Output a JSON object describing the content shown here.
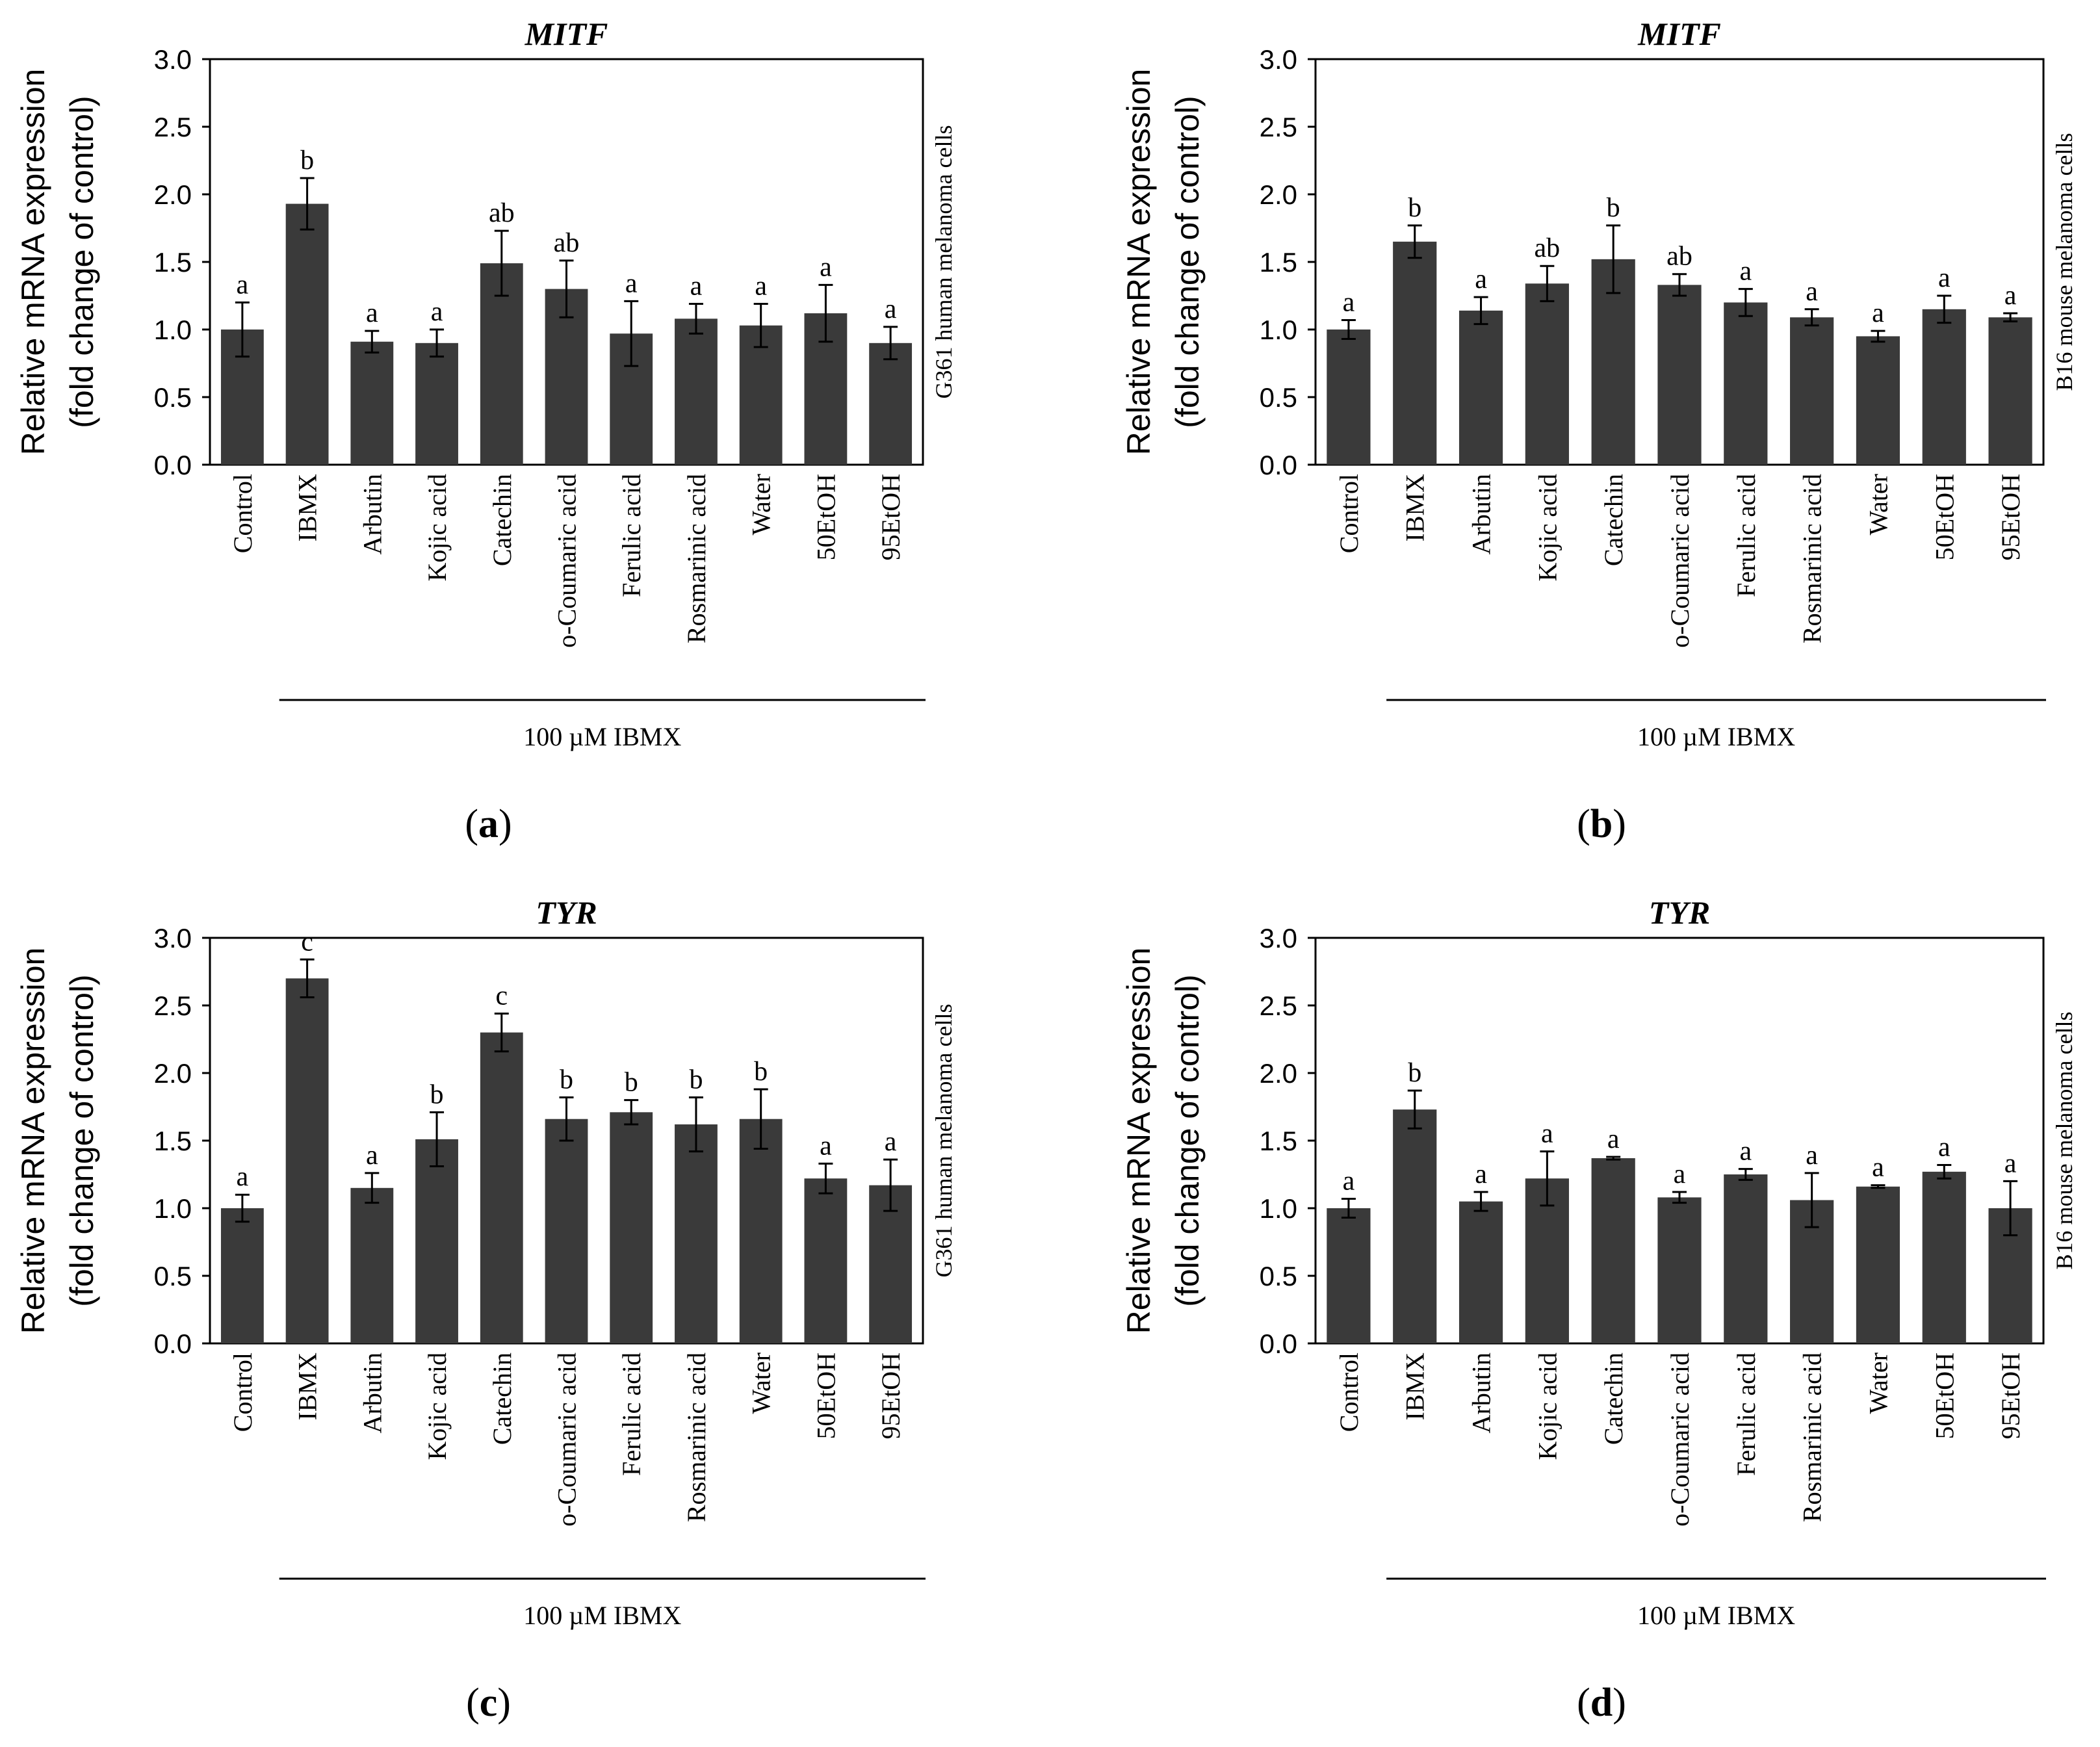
{
  "figure": {
    "x_group_label": "100 µM IBMX",
    "ylabel_line1": "Relative mRNA expression",
    "ylabel_line2": "(fold change of control)",
    "bar_color": "#3a3a3a",
    "text_color": "#000000"
  },
  "chart_data": [
    {
      "type": "bar",
      "panel_label": "a",
      "title": "MITF",
      "cell_line": "G361 human melanoma cells",
      "categories": [
        "Control",
        "IBMX",
        "Arbutin",
        "Kojic acid",
        "Catechin",
        "o-Coumaric acid",
        "Ferulic acid",
        "Rosmarinic acid",
        "Water",
        "50EtOH",
        "95EtOH"
      ],
      "values": [
        1.0,
        1.93,
        0.91,
        0.9,
        1.49,
        1.3,
        0.97,
        1.08,
        1.03,
        1.12,
        0.9
      ],
      "errors": [
        0.2,
        0.19,
        0.08,
        0.1,
        0.24,
        0.21,
        0.24,
        0.11,
        0.16,
        0.21,
        0.12
      ],
      "letters": [
        "a",
        "b",
        "a",
        "a",
        "ab",
        "ab",
        "a",
        "a",
        "a",
        "a",
        "a"
      ],
      "ylim": [
        0,
        3.0
      ],
      "yticks": [
        "0.0",
        "0.5",
        "1.0",
        "1.5",
        "2.0",
        "2.5",
        "3.0"
      ]
    },
    {
      "type": "bar",
      "panel_label": "b",
      "title": "MITF",
      "cell_line": "B16 mouse melanoma cells",
      "categories": [
        "Control",
        "IBMX",
        "Arbutin",
        "Kojic acid",
        "Catechin",
        "o-Coumaric acid",
        "Ferulic acid",
        "Rosmarinic acid",
        "Water",
        "50EtOH",
        "95EtOH"
      ],
      "values": [
        1.0,
        1.65,
        1.14,
        1.34,
        1.52,
        1.33,
        1.2,
        1.09,
        0.95,
        1.15,
        1.09
      ],
      "errors": [
        0.07,
        0.12,
        0.1,
        0.13,
        0.25,
        0.08,
        0.1,
        0.06,
        0.04,
        0.1,
        0.03
      ],
      "letters": [
        "a",
        "b",
        "a",
        "ab",
        "b",
        "ab",
        "a",
        "a",
        "a",
        "a",
        "a"
      ],
      "ylim": [
        0,
        3.0
      ],
      "yticks": [
        "0.0",
        "0.5",
        "1.0",
        "1.5",
        "2.0",
        "2.5",
        "3.0"
      ]
    },
    {
      "type": "bar",
      "panel_label": "c",
      "title": "TYR",
      "cell_line": "G361 human melanoma cells",
      "categories": [
        "Control",
        "IBMX",
        "Arbutin",
        "Kojic acid",
        "Catechin",
        "o-Coumaric acid",
        "Ferulic acid",
        "Rosmarinic acid",
        "Water",
        "50EtOH",
        "95EtOH"
      ],
      "values": [
        1.0,
        2.7,
        1.15,
        1.51,
        2.3,
        1.66,
        1.71,
        1.62,
        1.66,
        1.22,
        1.17
      ],
      "errors": [
        0.1,
        0.14,
        0.11,
        0.2,
        0.14,
        0.16,
        0.09,
        0.2,
        0.22,
        0.11,
        0.19
      ],
      "letters": [
        "a",
        "c",
        "a",
        "b",
        "c",
        "b",
        "b",
        "b",
        "b",
        "a",
        "a"
      ],
      "ylim": [
        0,
        3.0
      ],
      "yticks": [
        "0.0",
        "0.5",
        "1.0",
        "1.5",
        "2.0",
        "2.5",
        "3.0"
      ]
    },
    {
      "type": "bar",
      "panel_label": "d",
      "title": "TYR",
      "cell_line": "B16 mouse melanoma cells",
      "categories": [
        "Control",
        "IBMX",
        "Arbutin",
        "Kojic acid",
        "Catechin",
        "o-Coumaric acid",
        "Ferulic acid",
        "Rosmarinic acid",
        "Water",
        "50EtOH",
        "95EtOH"
      ],
      "values": [
        1.0,
        1.73,
        1.05,
        1.22,
        1.37,
        1.08,
        1.25,
        1.06,
        1.16,
        1.27,
        1.0
      ],
      "errors": [
        0.07,
        0.14,
        0.07,
        0.2,
        0.01,
        0.04,
        0.04,
        0.2,
        0.01,
        0.05,
        0.2
      ],
      "letters": [
        "a",
        "b",
        "a",
        "a",
        "a",
        "a",
        "a",
        "a",
        "a",
        "a",
        "a"
      ],
      "ylim": [
        0,
        3.0
      ],
      "yticks": [
        "0.0",
        "0.5",
        "1.0",
        "1.5",
        "2.0",
        "2.5",
        "3.0"
      ]
    }
  ]
}
